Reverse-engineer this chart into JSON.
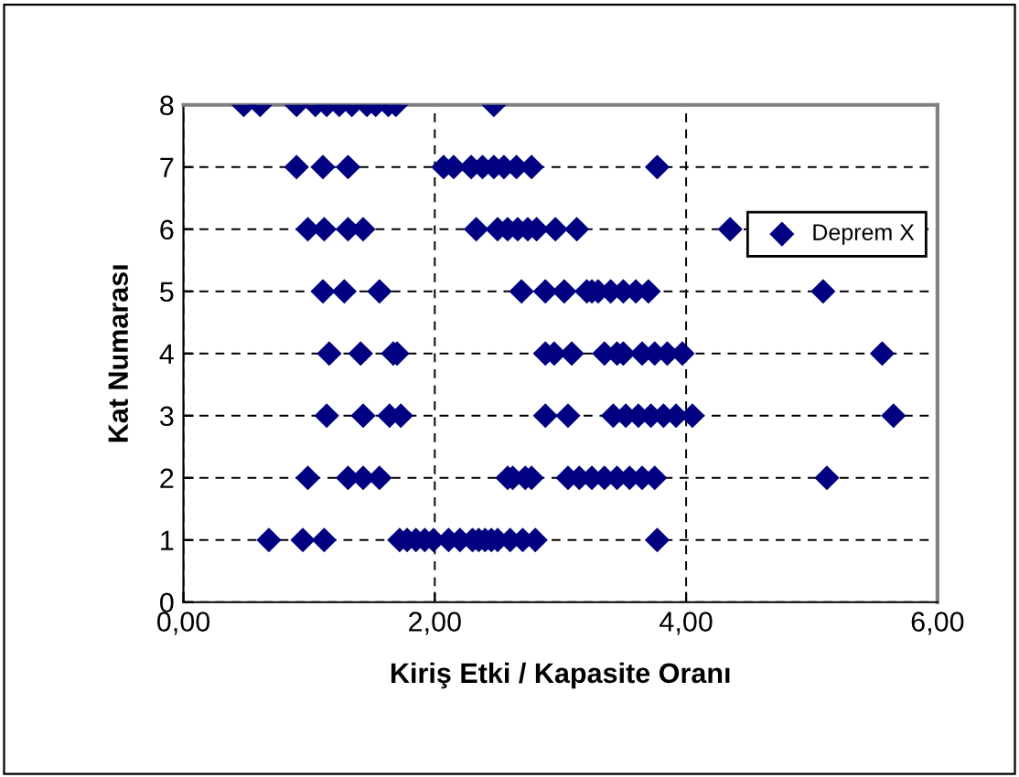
{
  "chart_data": {
    "type": "scatter",
    "xlabel": "Kiriş Etki / Kapasite Oranı",
    "ylabel": "Kat Numarası",
    "xlim": [
      0,
      6
    ],
    "ylim": [
      0,
      8
    ],
    "xticks": [
      {
        "value": 0,
        "label": "0,00"
      },
      {
        "value": 2,
        "label": "2,00"
      },
      {
        "value": 4,
        "label": "4,00"
      },
      {
        "value": 6,
        "label": "6,00"
      }
    ],
    "yticks": [
      0,
      1,
      2,
      3,
      4,
      5,
      6,
      7,
      8
    ],
    "grid": true,
    "line_style": "dashed",
    "marker": "diamond",
    "legend": "right",
    "series": [
      {
        "name": "Deprem X",
        "color": "#000080",
        "x": [
          0.48,
          0.61,
          0.9,
          1.05,
          1.14,
          1.24,
          1.34,
          1.46,
          1.53,
          1.63,
          1.69,
          2.47,
          0.9,
          1.11,
          1.31,
          2.07,
          2.15,
          2.29,
          2.38,
          2.47,
          2.55,
          2.65,
          2.77,
          3.77,
          0.99,
          1.12,
          1.31,
          1.43,
          2.33,
          2.5,
          2.58,
          2.66,
          2.74,
          2.81,
          2.96,
          3.13,
          4.35,
          1.11,
          1.28,
          1.56,
          2.69,
          2.88,
          3.03,
          3.21,
          3.25,
          3.3,
          3.4,
          3.5,
          3.6,
          3.7,
          5.09,
          1.16,
          1.41,
          1.67,
          1.7,
          2.88,
          2.95,
          3.09,
          3.35,
          3.45,
          3.5,
          3.65,
          3.75,
          3.85,
          3.97,
          5.56,
          1.14,
          1.43,
          1.64,
          1.73,
          2.88,
          3.06,
          3.42,
          3.52,
          3.62,
          3.72,
          3.82,
          3.92,
          4.05,
          5.65,
          0.99,
          1.31,
          1.43,
          1.56,
          2.58,
          2.62,
          2.72,
          2.77,
          3.06,
          3.15,
          3.25,
          3.35,
          3.45,
          3.55,
          3.65,
          3.75,
          5.12,
          0.68,
          0.95,
          1.12,
          1.72,
          1.78,
          1.85,
          1.92,
          1.99,
          2.11,
          2.2,
          2.3,
          2.35,
          2.4,
          2.45,
          2.5,
          2.6,
          2.7,
          2.8,
          3.77
        ],
        "values": [
          8,
          8,
          8,
          8,
          8,
          8,
          8,
          8,
          8,
          8,
          8,
          8,
          7,
          7,
          7,
          7,
          7,
          7,
          7,
          7,
          7,
          7,
          7,
          7,
          6,
          6,
          6,
          6,
          6,
          6,
          6,
          6,
          6,
          6,
          6,
          6,
          6,
          5,
          5,
          5,
          5,
          5,
          5,
          5,
          5,
          5,
          5,
          5,
          5,
          5,
          5,
          4,
          4,
          4,
          4,
          4,
          4,
          4,
          4,
          4,
          4,
          4,
          4,
          4,
          4,
          4,
          3,
          3,
          3,
          3,
          3,
          3,
          3,
          3,
          3,
          3,
          3,
          3,
          3,
          3,
          2,
          2,
          2,
          2,
          2,
          2,
          2,
          2,
          2,
          2,
          2,
          2,
          2,
          2,
          2,
          2,
          2,
          1,
          1,
          1,
          1,
          1,
          1,
          1,
          1,
          1,
          1,
          1,
          1,
          1,
          1,
          1,
          1,
          1,
          1,
          1
        ]
      }
    ]
  }
}
